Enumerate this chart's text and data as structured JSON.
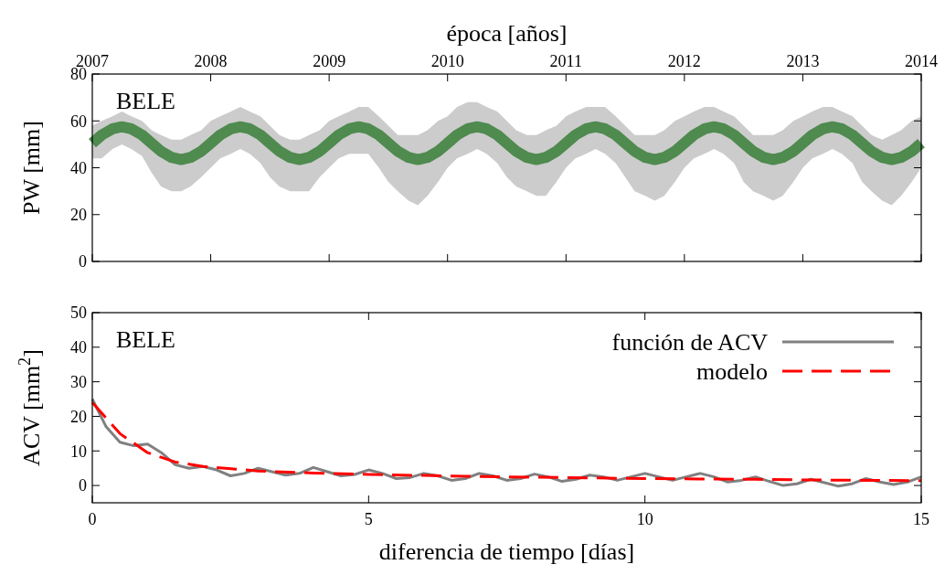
{
  "chart_data": [
    {
      "type": "line",
      "xlabel": "época [años]",
      "ylabel": "PW [mm]",
      "xlim": [
        2007,
        2014
      ],
      "xticks": [
        2007,
        2008,
        2009,
        2010,
        2011,
        2012,
        2013,
        2014
      ],
      "ylim": [
        0,
        80
      ],
      "yticks": [
        0,
        20,
        40,
        60,
        80
      ],
      "annotations": [
        "BELE"
      ],
      "legend": false,
      "grid": false,
      "series": [
        {
          "color": "#4f8a4f",
          "x": [
            2007,
            2007.08,
            2007.17,
            2007.25,
            2007.33,
            2007.42,
            2007.5,
            2007.58,
            2007.67,
            2007.75,
            2007.83,
            2007.92,
            2008,
            2008.08,
            2008.17,
            2008.25,
            2008.33,
            2008.42,
            2008.5,
            2008.58,
            2008.67,
            2008.75,
            2008.83,
            2008.92,
            2009,
            2009.08,
            2009.17,
            2009.25,
            2009.33,
            2009.42,
            2009.5,
            2009.58,
            2009.67,
            2009.75,
            2009.83,
            2009.92,
            2010,
            2010.08,
            2010.17,
            2010.25,
            2010.33,
            2010.42,
            2010.5,
            2010.58,
            2010.67,
            2010.75,
            2010.83,
            2010.92,
            2011,
            2011.08,
            2011.17,
            2011.25,
            2011.33,
            2011.42,
            2011.5,
            2011.58,
            2011.67,
            2011.75,
            2011.83,
            2011.92,
            2012,
            2012.08,
            2012.17,
            2012.25,
            2012.33,
            2012.42,
            2012.5,
            2012.58,
            2012.67,
            2012.75,
            2012.83,
            2012.92,
            2013,
            2013.08,
            2013.17,
            2013.25,
            2013.33,
            2013.42,
            2013.5,
            2013.58,
            2013.67,
            2013.75,
            2013.83,
            2013.92,
            2014
          ],
          "values": [
            50.5,
            54,
            56.6,
            57.5,
            56.6,
            54,
            50.5,
            47,
            44.4,
            43.5,
            44.4,
            47,
            50.5,
            54,
            56.6,
            57.5,
            56.6,
            54,
            50.5,
            47,
            44.4,
            43.5,
            44.4,
            47,
            50.5,
            54,
            56.6,
            57.5,
            56.6,
            54,
            50.5,
            47,
            44.4,
            43.5,
            44.4,
            47,
            50.5,
            54,
            56.6,
            57.5,
            56.6,
            54,
            50.5,
            47,
            44.4,
            43.5,
            44.4,
            47,
            50.5,
            54,
            56.6,
            57.5,
            56.6,
            54,
            50.5,
            47,
            44.4,
            43.5,
            44.4,
            47,
            50.5,
            54,
            56.6,
            57.5,
            56.6,
            54,
            50.5,
            47,
            44.4,
            43.5,
            44.4,
            47,
            50.5,
            54,
            56.6,
            57.5,
            56.6,
            54,
            50.5,
            47,
            44.4,
            43.5,
            44.4,
            47,
            50.5
          ],
          "lower": [
            44,
            44,
            48,
            50,
            48,
            45,
            38,
            32,
            30,
            30,
            32,
            36,
            40,
            44,
            46,
            48,
            46,
            42,
            36,
            32,
            30,
            30,
            30,
            36,
            40,
            44,
            46,
            46,
            46,
            40,
            34,
            30,
            26,
            24,
            28,
            34,
            40,
            44,
            46,
            48,
            46,
            42,
            36,
            32,
            30,
            28,
            28,
            34,
            40,
            44,
            46,
            48,
            46,
            42,
            36,
            30,
            28,
            26,
            28,
            34,
            40,
            44,
            46,
            48,
            46,
            42,
            34,
            30,
            28,
            26,
            28,
            34,
            40,
            44,
            46,
            48,
            46,
            42,
            34,
            30,
            26,
            24,
            28,
            34,
            40
          ],
          "upper": [
            58,
            60,
            62,
            64,
            62,
            60,
            56,
            54,
            52,
            52,
            54,
            56,
            60,
            62,
            64,
            66,
            64,
            62,
            58,
            54,
            52,
            52,
            54,
            56,
            60,
            62,
            64,
            66,
            66,
            62,
            58,
            54,
            54,
            54,
            56,
            60,
            62,
            66,
            68,
            68,
            66,
            64,
            60,
            56,
            54,
            54,
            56,
            58,
            62,
            64,
            66,
            66,
            66,
            62,
            58,
            54,
            54,
            54,
            56,
            60,
            62,
            64,
            66,
            66,
            64,
            62,
            58,
            54,
            54,
            54,
            56,
            60,
            62,
            64,
            66,
            66,
            64,
            62,
            58,
            54,
            52,
            54,
            56,
            60,
            62
          ]
        }
      ]
    },
    {
      "type": "line",
      "xlabel": "diferencia de tiempo [días]",
      "ylabel": "ACV [mm$^{2}$]",
      "xlim": [
        0,
        15
      ],
      "xticks": [
        0,
        5,
        10,
        15
      ],
      "ylim": [
        -5,
        50
      ],
      "yticks": [
        0,
        10,
        20,
        30,
        40,
        50
      ],
      "annotations": [
        "BELE"
      ],
      "legend": "top right",
      "grid": false,
      "series": [
        {
          "name": "función de ACV",
          "color": "#808080",
          "line_style": "solid",
          "x": [
            0,
            0.25,
            0.5,
            0.75,
            1,
            1.25,
            1.5,
            1.75,
            2,
            2.25,
            2.5,
            2.75,
            3,
            3.25,
            3.5,
            3.75,
            4,
            4.25,
            4.5,
            4.75,
            5,
            5.25,
            5.5,
            5.75,
            6,
            6.25,
            6.5,
            6.75,
            7,
            7.25,
            7.5,
            7.75,
            8,
            8.25,
            8.5,
            8.75,
            9,
            9.25,
            9.5,
            9.75,
            10,
            10.25,
            10.5,
            10.75,
            11,
            11.25,
            11.5,
            11.75,
            12,
            12.25,
            12.5,
            12.75,
            13,
            13.25,
            13.5,
            13.75,
            14,
            14.25,
            14.5,
            14.75,
            15
          ],
          "values": [
            25,
            17,
            12.5,
            11.5,
            12,
            9.5,
            6,
            5,
            5.5,
            4.5,
            2.8,
            3.5,
            5,
            4,
            3,
            3.5,
            5.2,
            4,
            2.8,
            3.2,
            4.5,
            3.5,
            2,
            2.3,
            3.5,
            2.8,
            1.5,
            2,
            3.5,
            2.8,
            1.5,
            2,
            3.3,
            2.5,
            1.2,
            1.8,
            3,
            2.5,
            1.5,
            2.5,
            3.5,
            2.5,
            1.5,
            2.5,
            3.5,
            2.5,
            1,
            1.5,
            2.5,
            1.2,
            0,
            0.5,
            1.8,
            0.8,
            -0.2,
            0.5,
            2,
            1,
            0.3,
            1,
            2.5
          ]
        },
        {
          "name": "modelo",
          "color": "#ff0000",
          "line_style": "dashed",
          "x": [
            0,
            0.5,
            1,
            1.5,
            2,
            3,
            4,
            5,
            6,
            7,
            8,
            9,
            10,
            11,
            12,
            13,
            14,
            15
          ],
          "values": [
            24,
            15,
            9.5,
            6.8,
            5.5,
            4.2,
            3.6,
            3.2,
            2.9,
            2.6,
            2.4,
            2.2,
            2,
            1.9,
            1.8,
            1.6,
            1.5,
            1.4
          ]
        }
      ]
    }
  ]
}
